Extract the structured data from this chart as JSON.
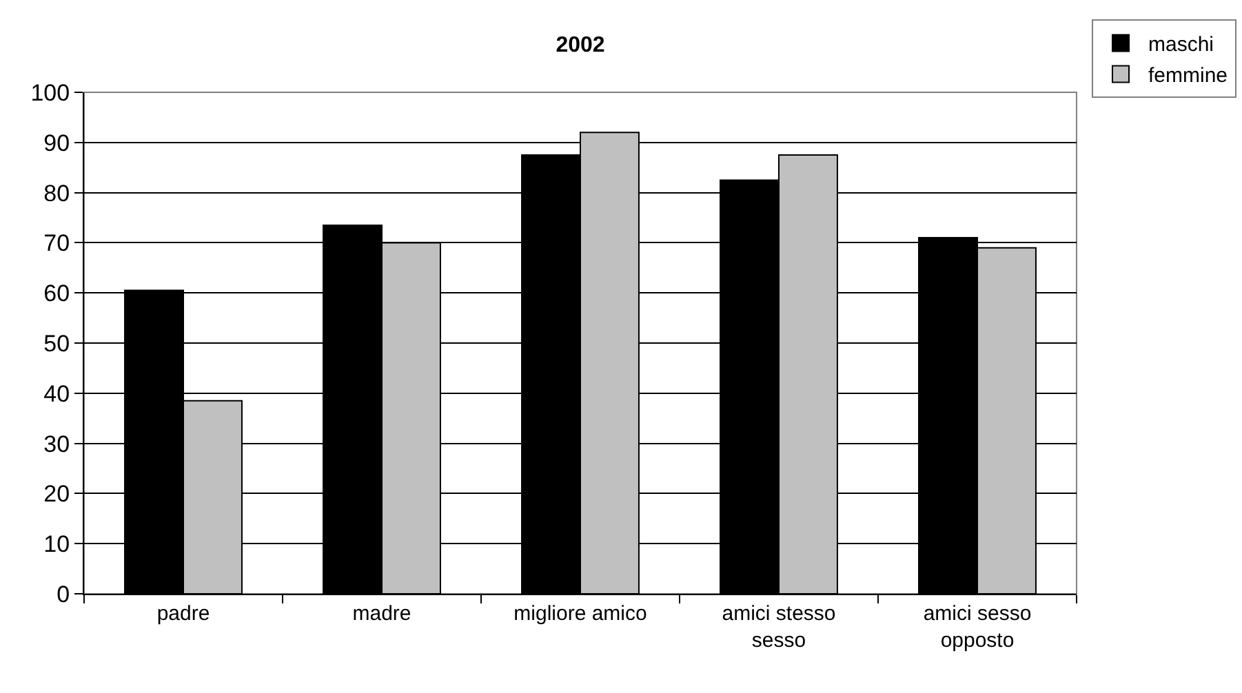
{
  "chart_data": {
    "type": "bar",
    "title": "2002",
    "categories": [
      "padre",
      "madre",
      "migliore amico",
      "amici stesso sesso",
      "amici sesso opposto"
    ],
    "series": [
      {
        "name": "maschi",
        "color": "#000000",
        "values": [
          60.5,
          73.5,
          87.5,
          82.5,
          71
        ]
      },
      {
        "name": "femmine",
        "color": "#c0c0c0",
        "values": [
          38.5,
          70,
          92,
          87.5,
          69
        ]
      }
    ],
    "ylim": [
      0,
      100
    ],
    "yticks": [
      0,
      10,
      20,
      30,
      40,
      50,
      60,
      70,
      80,
      90,
      100
    ],
    "grid": "y",
    "legend": "top right"
  }
}
